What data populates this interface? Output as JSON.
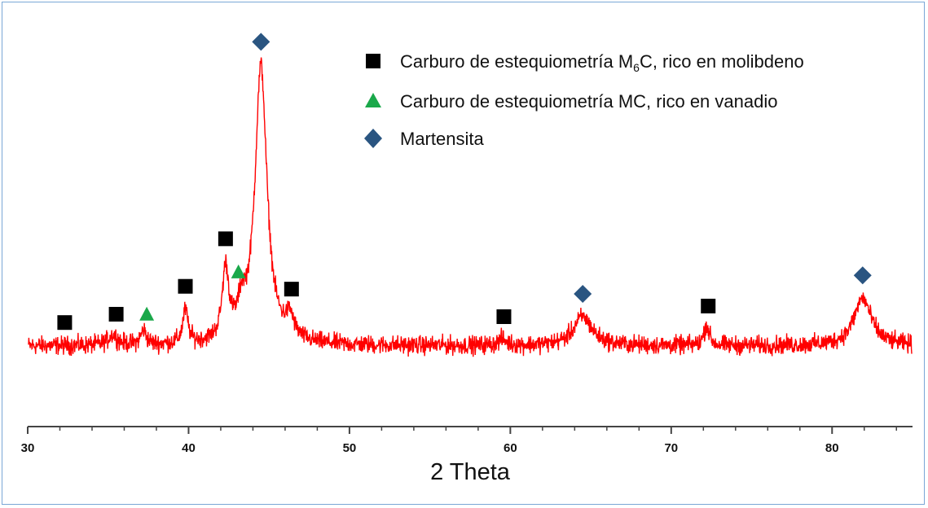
{
  "chart_data": {
    "type": "line",
    "xlabel": "2 Theta",
    "ylabel": "",
    "xlim": [
      30,
      85
    ],
    "x_ticks": [
      30,
      40,
      50,
      60,
      70,
      80
    ],
    "x_tick_labels": [
      "30",
      "40",
      "50",
      "60",
      "70",
      "80"
    ],
    "grid": false,
    "legend_position": "top-right",
    "series": [
      {
        "color": "#ff0000",
        "baseline": 10,
        "noise": 2.2,
        "peaks": [
          {
            "x": 35.3,
            "height": 5,
            "width": 0.35
          },
          {
            "x": 37.2,
            "height": 7,
            "width": 0.2
          },
          {
            "x": 39.8,
            "height": 16,
            "width": 0.2
          },
          {
            "x": 42.3,
            "height": 34,
            "width": 0.25
          },
          {
            "x": 43.3,
            "height": 13,
            "width": 0.3
          },
          {
            "x": 44.5,
            "height": 134,
            "width": 0.45
          },
          {
            "x": 46.3,
            "height": 10,
            "width": 0.3
          },
          {
            "x": 59.5,
            "height": 3,
            "width": 0.3
          },
          {
            "x": 64.5,
            "height": 14,
            "width": 0.7
          },
          {
            "x": 72.2,
            "height": 10,
            "width": 0.2
          },
          {
            "x": 81.9,
            "height": 23,
            "width": 0.65
          }
        ]
      }
    ],
    "legend": [
      {
        "marker": "square",
        "color": "#000000",
        "label_prefix": "Carburo de estequiometría M",
        "label_sub": "6",
        "label_suffix": "C, rico en molibdeno"
      },
      {
        "marker": "triangle",
        "color": "#1aa84a",
        "label": "Carburo de estequiometría MC, rico en vanadio"
      },
      {
        "marker": "diamond",
        "color": "#2a5581",
        "label": "Martensita"
      }
    ],
    "markers": [
      {
        "phase": "square",
        "x": 32.3
      },
      {
        "phase": "square",
        "x": 35.5
      },
      {
        "phase": "triangle",
        "x": 37.4
      },
      {
        "phase": "square",
        "x": 39.8
      },
      {
        "phase": "square",
        "x": 42.3
      },
      {
        "phase": "triangle",
        "x": 43.1
      },
      {
        "phase": "diamond",
        "x": 44.5
      },
      {
        "phase": "square",
        "x": 46.4
      },
      {
        "phase": "square",
        "x": 59.6
      },
      {
        "phase": "diamond",
        "x": 64.5
      },
      {
        "phase": "square",
        "x": 72.3
      },
      {
        "phase": "diamond",
        "x": 81.9
      }
    ]
  }
}
